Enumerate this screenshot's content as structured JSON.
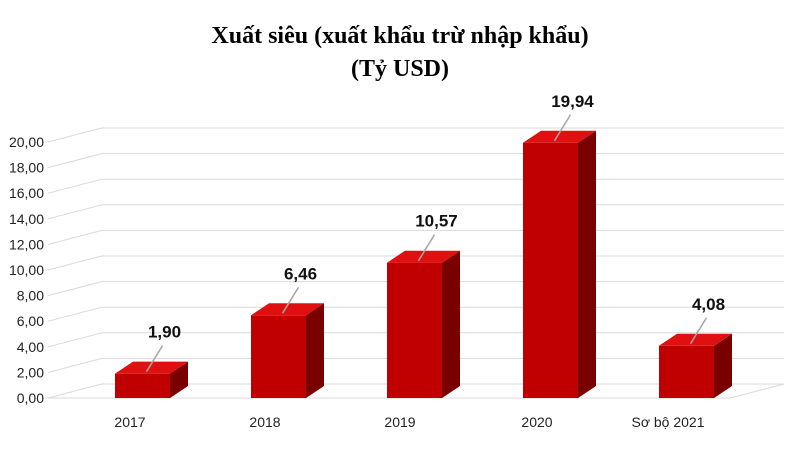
{
  "chart_data": {
    "type": "bar",
    "title": "Xuất siêu (xuất khẩu trừ nhập khẩu)",
    "subtitle": "(Tỷ USD)",
    "categories": [
      "2017",
      "2018",
      "2019",
      "2020",
      "Sơ bộ 2021"
    ],
    "values": [
      1.9,
      6.46,
      10.57,
      19.94,
      4.08
    ],
    "data_labels": [
      "1,90",
      "6,46",
      "10,57",
      "19,94",
      "4,08"
    ],
    "y_ticks": [
      "0,00",
      "2,00",
      "4,00",
      "6,00",
      "8,00",
      "10,00",
      "12,00",
      "14,00",
      "16,00",
      "18,00",
      "20,00"
    ],
    "ylim": [
      0,
      20
    ],
    "grid": true,
    "three_d": true,
    "colors": {
      "bar_front": "#c00000",
      "bar_side": "#7a0000",
      "bar_top": "#e01010",
      "grid": "#d9d9d9"
    }
  }
}
